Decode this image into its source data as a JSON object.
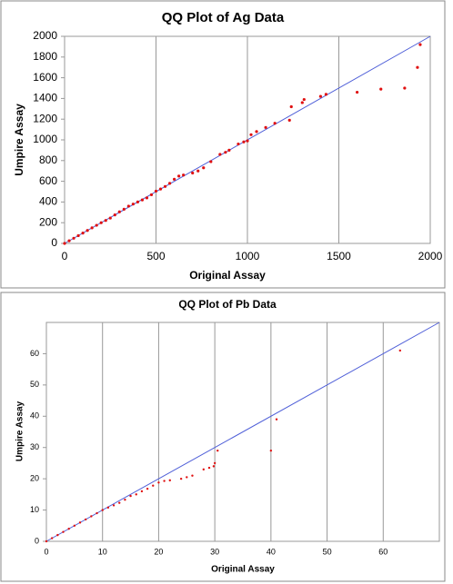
{
  "chart_data": [
    {
      "type": "scatter",
      "title": "QQ Plot of Ag Data",
      "xlabel": "Original Assay",
      "ylabel": "Umpire Assay",
      "xlim": [
        0,
        2000
      ],
      "ylim": [
        0,
        2000
      ],
      "xticks": [
        0,
        500,
        1000,
        1500,
        2000
      ],
      "yticks": [
        0,
        200,
        400,
        600,
        800,
        1000,
        1200,
        1400,
        1600,
        1800,
        2000
      ],
      "grid": "x",
      "series": [
        {
          "marker": "line",
          "color": "#4f5fd8",
          "x": [
            0,
            2000
          ],
          "values": [
            0,
            2000
          ]
        },
        {
          "marker": "dot",
          "color": "#e01010",
          "x": [
            0,
            25,
            50,
            75,
            100,
            125,
            150,
            175,
            200,
            225,
            250,
            275,
            300,
            325,
            350,
            375,
            400,
            425,
            450,
            475,
            500,
            525,
            550,
            575,
            600,
            625,
            650,
            700,
            730,
            760,
            800,
            850,
            880,
            900,
            950,
            980,
            1000,
            1020,
            1050,
            1100,
            1150,
            1230,
            1240,
            1300,
            1310,
            1400,
            1430,
            1600,
            1730,
            1860,
            1930,
            1945
          ],
          "values": [
            0,
            25,
            50,
            75,
            100,
            125,
            150,
            175,
            200,
            222,
            245,
            275,
            305,
            330,
            360,
            380,
            400,
            420,
            440,
            470,
            505,
            525,
            550,
            580,
            620,
            650,
            660,
            680,
            700,
            730,
            790,
            860,
            880,
            900,
            960,
            980,
            990,
            1050,
            1080,
            1120,
            1160,
            1190,
            1320,
            1360,
            1390,
            1420,
            1440,
            1460,
            1490,
            1500,
            1700,
            1920
          ]
        }
      ]
    },
    {
      "type": "scatter",
      "title": "QQ Plot of Pb Data",
      "xlabel": "Original Assay",
      "ylabel": "Umpire Assay",
      "xlim": [
        0,
        70
      ],
      "ylim": [
        0,
        70
      ],
      "xticks": [
        0,
        10,
        20,
        30,
        40,
        50,
        60
      ],
      "yticks": [
        0,
        10,
        20,
        30,
        40,
        50,
        60
      ],
      "grid": "x",
      "series": [
        {
          "marker": "line",
          "color": "#4f5fd8",
          "x": [
            0,
            70
          ],
          "values": [
            0,
            70
          ]
        },
        {
          "marker": "dot",
          "color": "#e01010",
          "x": [
            0,
            1,
            2,
            3,
            4,
            5,
            6,
            7,
            8,
            9,
            10,
            11,
            12,
            13,
            14,
            15,
            16,
            17,
            18,
            19,
            20,
            21,
            22,
            24,
            25,
            26,
            28,
            29,
            29.8,
            30,
            30.5,
            40,
            41,
            63
          ],
          "values": [
            0,
            1,
            2,
            3,
            4,
            5,
            6,
            7,
            8,
            9,
            10,
            10.8,
            11.5,
            12.3,
            13.3,
            14.5,
            15,
            16,
            16.8,
            17.8,
            18.8,
            19.3,
            19.5,
            20,
            20.5,
            21,
            23,
            23.5,
            24,
            25,
            29,
            29,
            39,
            61
          ]
        }
      ]
    }
  ]
}
